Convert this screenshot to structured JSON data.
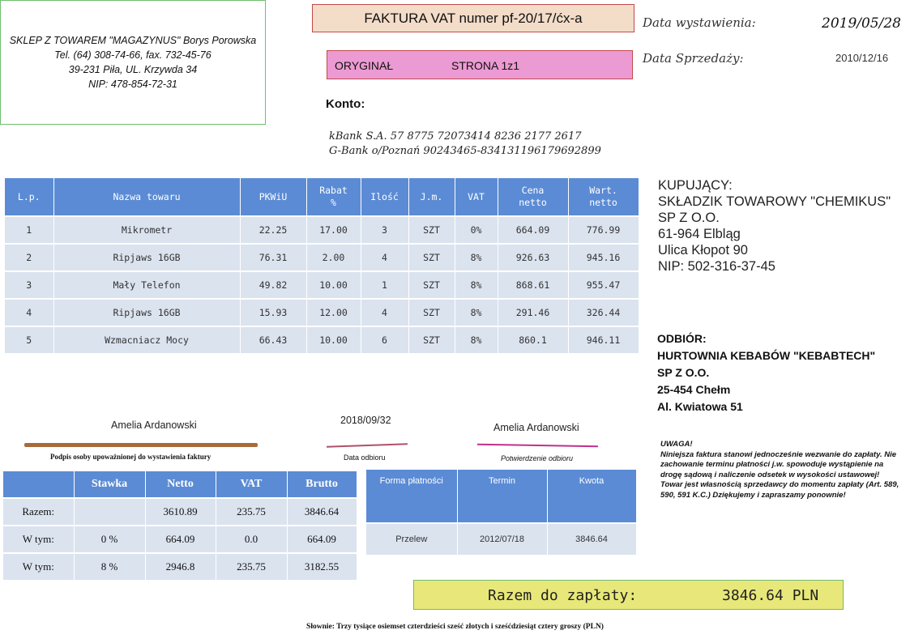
{
  "seller": {
    "line1": "SKLEP Z TOWAREM \"MAGAZYNUS\" Borys Porowska",
    "line2": "Tel. (64) 308-74-66, fax. 732-45-76",
    "line3": "39-231 Piła, UL. Krzywda 34",
    "line4": "NIP: 478-854-72-31"
  },
  "header": {
    "title": "FAKTURA VAT numer pf-20/17/ćx-a",
    "original": "ORYGINAŁ",
    "page": "STRONA 1z1",
    "issue_date_label": "Data wystawienia:",
    "issue_date": "2019/05/28",
    "sale_date_label": "Data Sprzedaży:",
    "sale_date": "2010/12/16"
  },
  "konto": {
    "label": "Konto:",
    "line1": "kBank S.A. 57 8775 72073414 8236 2177 2617",
    "line2": "G-Bank  o/Poznań 90243465-834131196179692899"
  },
  "items": {
    "headers": [
      "L.p.",
      "Nazwa towaru",
      "PKWiU",
      "Rabat\n%",
      "Ilość",
      "J.m.",
      "VAT",
      "Cena\nnetto",
      "Wart.\nnetto"
    ],
    "rows": [
      [
        "1",
        "Mikrometr",
        "22.25",
        "17.00",
        "3",
        "SZT",
        "0%",
        "664.09",
        "776.99"
      ],
      [
        "2",
        "Ripjaws 16GB",
        "76.31",
        "2.00",
        "4",
        "SZT",
        "8%",
        "926.63",
        "945.16"
      ],
      [
        "3",
        "Mały Telefon",
        "49.82",
        "10.00",
        "1",
        "SZT",
        "8%",
        "868.61",
        "955.47"
      ],
      [
        "4",
        "Ripjaws 16GB",
        "15.93",
        "12.00",
        "4",
        "SZT",
        "8%",
        "291.46",
        "326.44"
      ],
      [
        "5",
        "Wzmacniacz Mocy",
        "66.43",
        "10.00",
        "6",
        "SZT",
        "8%",
        "860.1",
        "946.11"
      ]
    ]
  },
  "buyer": {
    "l1": "KUPUJĄCY:",
    "l2": "SKŁADZIK TOWAROWY \"CHEMIKUS\"",
    "l3": "SP Z O.O.",
    "l4": "61-964 Elbląg",
    "l5": "Ulica Kłopot 90",
    "l6": "NIP: 502-316-37-45"
  },
  "odbior": {
    "l1": "ODBIÓR:",
    "l2": "HURTOWNIA KEBABÓW \"KEBABTECH\"",
    "l3": "SP Z O.O.",
    "l4": "25-454 Chełm",
    "l5": "Al. Kwiatowa  51"
  },
  "signatures": {
    "issuer_name": "Amelia Ardanowski",
    "issuer_label": "Podpis osoby upoważnionej do wystawienia faktury",
    "receipt_date": "2018/09/32",
    "receipt_date_label": "Data odbioru",
    "receiver_name": "Amelia Ardanowski",
    "receiver_label": "Potwierdzenie odbioru"
  },
  "uwaga": {
    "title": "UWAGA!",
    "text": "Niniejsza faktura stanowi jednocześnie wezwanie do zapłaty. Nie zachowanie terminu płatności j.w. spowoduje wystąpienie na drogę sądową i naliczenie odsetek w wysokości ustawowej! Towar jest własnością sprzedawcy do momentu zapłaty (Art. 589, 590, 591 K.C.) Dziękujemy i zapraszamy ponownie!"
  },
  "summary": {
    "headers": [
      "",
      "Stawka",
      "Netto",
      "VAT",
      "Brutto"
    ],
    "rows": [
      [
        "Razem:",
        "",
        "3610.89",
        "235.75",
        "3846.64"
      ],
      [
        "W tym:",
        "0 %",
        "664.09",
        "0.0",
        "664.09"
      ],
      [
        "W tym:",
        "8 %",
        "2946.8",
        "235.75",
        "3182.55"
      ]
    ]
  },
  "payment": {
    "headers": [
      "Forma płatności",
      "Termin",
      "Kwota"
    ],
    "row": [
      "Przelew",
      "2012/07/18",
      "3846.64"
    ]
  },
  "total": {
    "label": "Razem do zapłaty:",
    "amount": "3846.64 PLN"
  },
  "slownie": "Słownie: Trzy tysiące osiemset czterdzieści sześć złotych i sześćdziesiąt cztery groszy (PLN)"
}
